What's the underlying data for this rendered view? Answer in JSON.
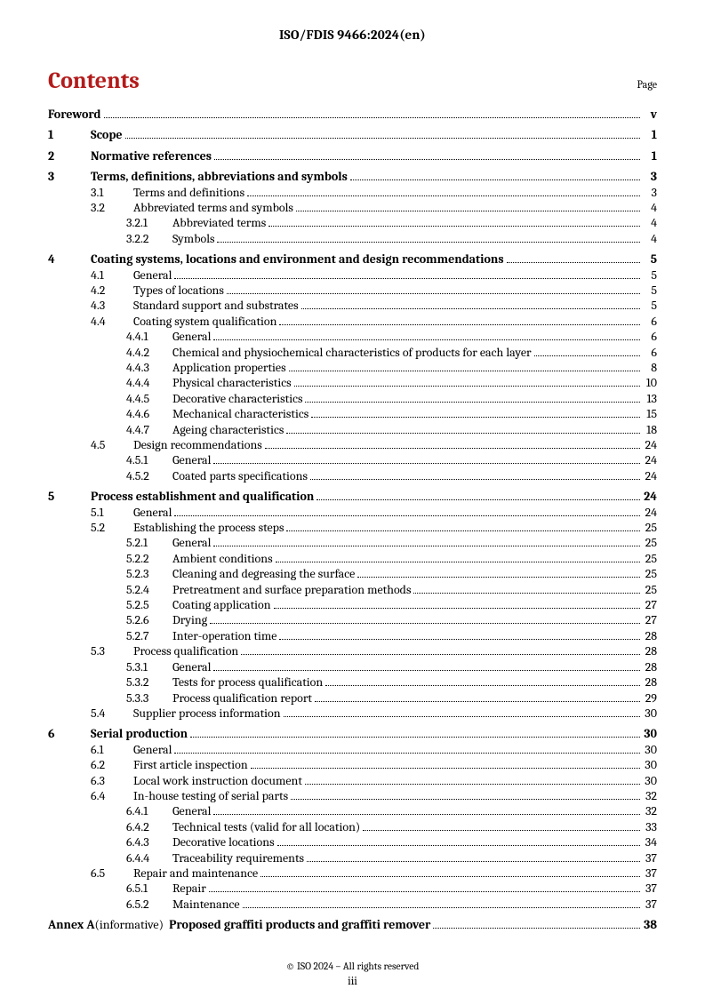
{
  "header": "ISO/FDIS 9466:2024(en)",
  "contentsLabel": "Contents",
  "pageLabel": "Page",
  "footer": "© ISO 2024 – All rights reserved",
  "pageNumber": "iii",
  "toc": [
    {
      "row": {
        "num": "",
        "title": "Foreword",
        "page": "v",
        "level": 0,
        "noNum": true
      }
    },
    {
      "row": {
        "num": "1",
        "title": "Scope",
        "page": "1",
        "level": 0
      }
    },
    {
      "row": {
        "num": "2",
        "title": "Normative references",
        "page": "1",
        "level": 0
      }
    },
    {
      "row": {
        "num": "3",
        "title": "Terms, definitions, abbreviations and symbols",
        "page": "3",
        "level": 0
      },
      "children": [
        {
          "row": {
            "num": "3.1",
            "title": "Terms and definitions",
            "page": "3",
            "level": 1
          }
        },
        {
          "row": {
            "num": "3.2",
            "title": "Abbreviated terms and symbols",
            "page": "4",
            "level": 1
          },
          "children": [
            {
              "row": {
                "num": "3.2.1",
                "title": "Abbreviated terms",
                "page": "4",
                "level": 2
              }
            },
            {
              "row": {
                "num": "3.2.2",
                "title": "Symbols",
                "page": "4",
                "level": 2
              }
            }
          ]
        }
      ]
    },
    {
      "row": {
        "num": "4",
        "title": "Coating systems, locations and environment and design recommendations",
        "page": "5",
        "level": 0
      },
      "children": [
        {
          "row": {
            "num": "4.1",
            "title": "General",
            "page": "5",
            "level": 1
          }
        },
        {
          "row": {
            "num": "4.2",
            "title": "Types of locations",
            "page": "5",
            "level": 1
          }
        },
        {
          "row": {
            "num": "4.3",
            "title": "Standard support and substrates",
            "page": "5",
            "level": 1
          }
        },
        {
          "row": {
            "num": "4.4",
            "title": "Coating system qualification",
            "page": "6",
            "level": 1
          },
          "children": [
            {
              "row": {
                "num": "4.4.1",
                "title": "General",
                "page": "6",
                "level": 2
              }
            },
            {
              "row": {
                "num": "4.4.2",
                "title": "Chemical and physiochemical characteristics of products for each layer",
                "page": "6",
                "level": 2
              }
            },
            {
              "row": {
                "num": "4.4.3",
                "title": "Application properties",
                "page": "8",
                "level": 2
              }
            },
            {
              "row": {
                "num": "4.4.4",
                "title": "Physical characteristics",
                "page": "10",
                "level": 2
              }
            },
            {
              "row": {
                "num": "4.4.5",
                "title": "Decorative characteristics",
                "page": "13",
                "level": 2
              }
            },
            {
              "row": {
                "num": "4.4.6",
                "title": "Mechanical characteristics",
                "page": "15",
                "level": 2
              }
            },
            {
              "row": {
                "num": "4.4.7",
                "title": "Ageing characteristics",
                "page": "18",
                "level": 2
              }
            }
          ]
        },
        {
          "row": {
            "num": "4.5",
            "title": "Design recommendations",
            "page": "24",
            "level": 1
          },
          "children": [
            {
              "row": {
                "num": "4.5.1",
                "title": "General",
                "page": "24",
                "level": 2
              }
            },
            {
              "row": {
                "num": "4.5.2",
                "title": "Coated parts specifications",
                "page": "24",
                "level": 2
              }
            }
          ]
        }
      ]
    },
    {
      "row": {
        "num": "5",
        "title": "Process establishment and qualification",
        "page": "24",
        "level": 0
      },
      "children": [
        {
          "row": {
            "num": "5.1",
            "title": "General",
            "page": "24",
            "level": 1
          }
        },
        {
          "row": {
            "num": "5.2",
            "title": "Establishing the process steps",
            "page": "25",
            "level": 1
          },
          "children": [
            {
              "row": {
                "num": "5.2.1",
                "title": "General",
                "page": "25",
                "level": 2
              }
            },
            {
              "row": {
                "num": "5.2.2",
                "title": "Ambient conditions",
                "page": "25",
                "level": 2
              }
            },
            {
              "row": {
                "num": "5.2.3",
                "title": "Cleaning and degreasing the surface",
                "page": "25",
                "level": 2
              }
            },
            {
              "row": {
                "num": "5.2.4",
                "title": "Pretreatment and surface preparation methods",
                "page": "25",
                "level": 2
              }
            },
            {
              "row": {
                "num": "5.2.5",
                "title": "Coating application",
                "page": "27",
                "level": 2
              }
            },
            {
              "row": {
                "num": "5.2.6",
                "title": "Drying",
                "page": "27",
                "level": 2
              }
            },
            {
              "row": {
                "num": "5.2.7",
                "title": "Inter-operation time",
                "page": "28",
                "level": 2
              }
            }
          ]
        },
        {
          "row": {
            "num": "5.3",
            "title": "Process qualification",
            "page": "28",
            "level": 1
          },
          "children": [
            {
              "row": {
                "num": "5.3.1",
                "title": "General",
                "page": "28",
                "level": 2
              }
            },
            {
              "row": {
                "num": "5.3.2",
                "title": "Tests for process qualification",
                "page": "28",
                "level": 2
              }
            },
            {
              "row": {
                "num": "5.3.3",
                "title": "Process qualification report",
                "page": "29",
                "level": 2
              }
            }
          ]
        },
        {
          "row": {
            "num": "5.4",
            "title": "Supplier process information",
            "page": "30",
            "level": 1
          }
        }
      ]
    },
    {
      "row": {
        "num": "6",
        "title": "Serial production",
        "page": "30",
        "level": 0
      },
      "children": [
        {
          "row": {
            "num": "6.1",
            "title": "General",
            "page": "30",
            "level": 1
          }
        },
        {
          "row": {
            "num": "6.2",
            "title": "First article inspection",
            "page": "30",
            "level": 1
          }
        },
        {
          "row": {
            "num": "6.3",
            "title": "Local work instruction document",
            "page": "30",
            "level": 1
          }
        },
        {
          "row": {
            "num": "6.4",
            "title": "In-house testing of serial parts",
            "page": "32",
            "level": 1
          },
          "children": [
            {
              "row": {
                "num": "6.4.1",
                "title": "General",
                "page": "32",
                "level": 2
              }
            },
            {
              "row": {
                "num": "6.4.2",
                "title": "Technical tests (valid for all location)",
                "page": "33",
                "level": 2
              }
            },
            {
              "row": {
                "num": "6.4.3",
                "title": "Decorative locations",
                "page": "34",
                "level": 2
              }
            },
            {
              "row": {
                "num": "6.4.4",
                "title": "Traceability requirements",
                "page": "37",
                "level": 2
              }
            }
          ]
        },
        {
          "row": {
            "num": "6.5",
            "title": "Repair and maintenance",
            "page": "37",
            "level": 1
          },
          "children": [
            {
              "row": {
                "num": "6.5.1",
                "title": "Repair",
                "page": "37",
                "level": 2
              }
            },
            {
              "row": {
                "num": "6.5.2",
                "title": "Maintenance",
                "page": "37",
                "level": 2
              }
            }
          ]
        }
      ]
    },
    {
      "row": {
        "annex": true,
        "prefix": "Annex A",
        "info": "(informative)",
        "title": "Proposed graffiti products and graffiti remover",
        "page": "38",
        "level": 0
      }
    }
  ]
}
